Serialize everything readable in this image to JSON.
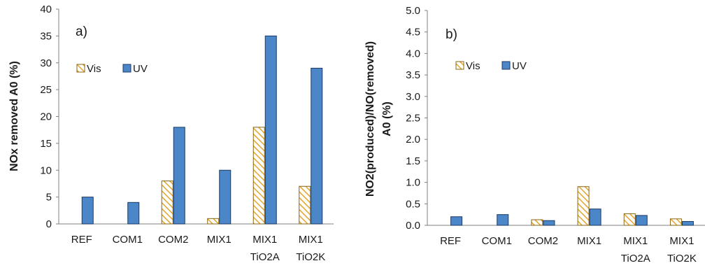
{
  "colors": {
    "uv": "#4a86c8",
    "uv_border": "#1c3a66",
    "vis_hatch": "#e3a52a",
    "vis_border": "#8a6410",
    "axis": "#808080"
  },
  "chart_data": [
    {
      "type": "bar",
      "panel_label": "a)",
      "ylabel_lines": [
        "NOx removed  A0 (%)"
      ],
      "ylim": [
        0,
        40
      ],
      "yticks": [
        "0",
        "5",
        "10",
        "15",
        "20",
        "25",
        "30",
        "35",
        "40"
      ],
      "grid": false,
      "legend_position": "upper-left",
      "categories": [
        [
          "REF"
        ],
        [
          "COM1"
        ],
        [
          "COM2"
        ],
        [
          "MIX1"
        ],
        [
          "MIX1",
          "TiO2A"
        ],
        [
          "MIX1",
          "TiO2K"
        ]
      ],
      "series": [
        {
          "name": "Vis",
          "pattern": "hatched",
          "values": [
            0,
            0,
            8,
            1,
            18,
            7
          ]
        },
        {
          "name": "UV",
          "pattern": "solid",
          "values": [
            5,
            4,
            18,
            10,
            35,
            29
          ]
        }
      ]
    },
    {
      "type": "bar",
      "panel_label": "b)",
      "ylabel_lines": [
        "NO2(produced)/NO(removed)",
        "A0 (%)"
      ],
      "ylim": [
        0,
        5
      ],
      "yticks": [
        "0.0",
        "0.5",
        "1.0",
        "1.5",
        "2.0",
        "2.5",
        "3.0",
        "3.5",
        "4.0",
        "4.5",
        "5.0"
      ],
      "grid": false,
      "legend_position": "upper-left",
      "categories": [
        [
          "REF"
        ],
        [
          "COM1"
        ],
        [
          "COM2"
        ],
        [
          "MIX1"
        ],
        [
          "MIX1",
          "TiO2A"
        ],
        [
          "MIX1",
          "TiO2K"
        ]
      ],
      "series": [
        {
          "name": "Vis",
          "pattern": "hatched",
          "values": [
            0,
            0,
            0.13,
            0.9,
            0.27,
            0.15
          ]
        },
        {
          "name": "UV",
          "pattern": "solid",
          "values": [
            0.2,
            0.25,
            0.11,
            0.38,
            0.23,
            0.09
          ]
        }
      ]
    }
  ]
}
